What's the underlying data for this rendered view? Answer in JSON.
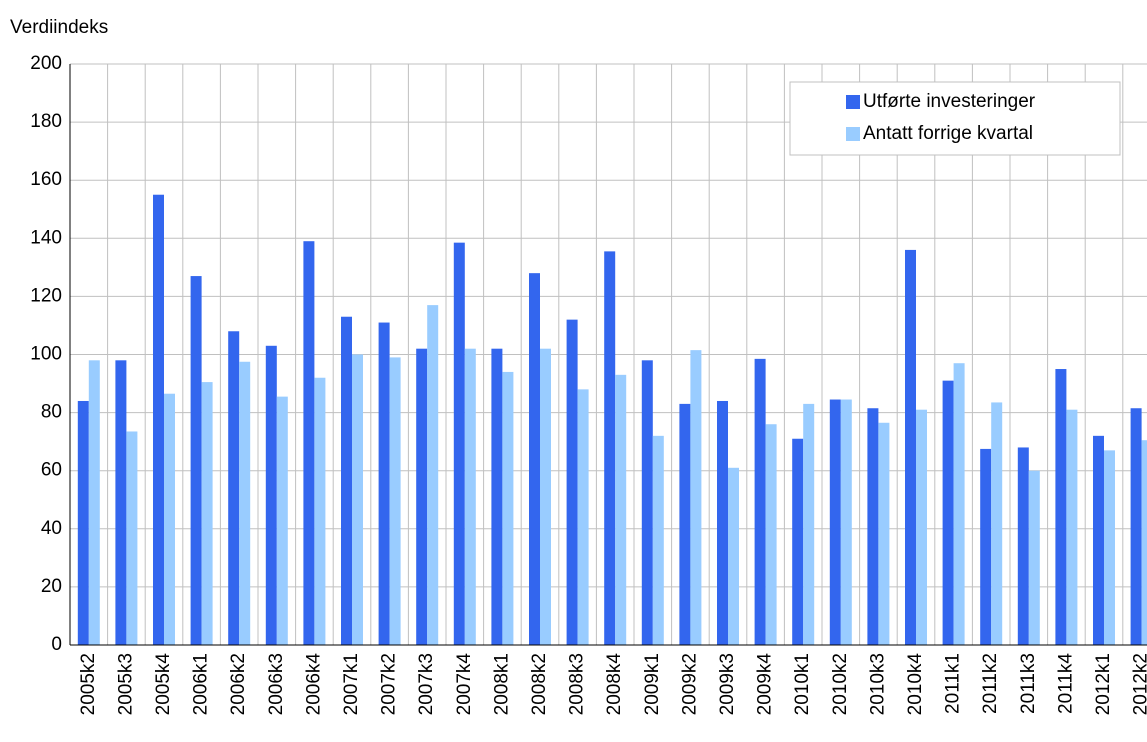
{
  "chart_data": {
    "type": "bar",
    "y_label": "Verdiindeks",
    "categories": [
      "2005k2",
      "2005k3",
      "2005k4",
      "2006k1",
      "2006k2",
      "2006k3",
      "2006k4",
      "2007k1",
      "2007k2",
      "2007k3",
      "2007k4",
      "2008k1",
      "2008k2",
      "2008k3",
      "2008k4",
      "2009k1",
      "2009k2",
      "2009k3",
      "2009k4",
      "2010k1",
      "2010k2",
      "2010k3",
      "2010k4",
      "2011k1",
      "2011k2",
      "2011k3",
      "2011k4",
      "2012k1",
      "2012k2"
    ],
    "series": [
      {
        "name": "Utførte investeringer",
        "color": "#3366ee",
        "values": [
          84,
          98,
          155,
          127,
          108,
          103,
          139,
          113,
          111,
          102,
          138.5,
          102,
          128,
          112,
          135.5,
          98,
          83,
          84,
          98.5,
          71,
          84.5,
          81.5,
          136,
          91,
          67.5,
          68,
          95,
          72,
          81.5
        ]
      },
      {
        "name": "Antatt forrige kvartal",
        "color": "#99ccff",
        "values": [
          98,
          73.5,
          86.5,
          90.5,
          97.5,
          85.5,
          92,
          100,
          99,
          117,
          102,
          94,
          102,
          88,
          93,
          72,
          101.5,
          61,
          76,
          83,
          84.5,
          76.5,
          81,
          97,
          83.5,
          60,
          81,
          67,
          70.5
        ]
      }
    ],
    "ylim": [
      0,
      200
    ],
    "yticks": [
      0,
      20,
      40,
      60,
      80,
      100,
      120,
      140,
      160,
      180,
      200
    ],
    "grid": true,
    "legend": "upper right"
  }
}
